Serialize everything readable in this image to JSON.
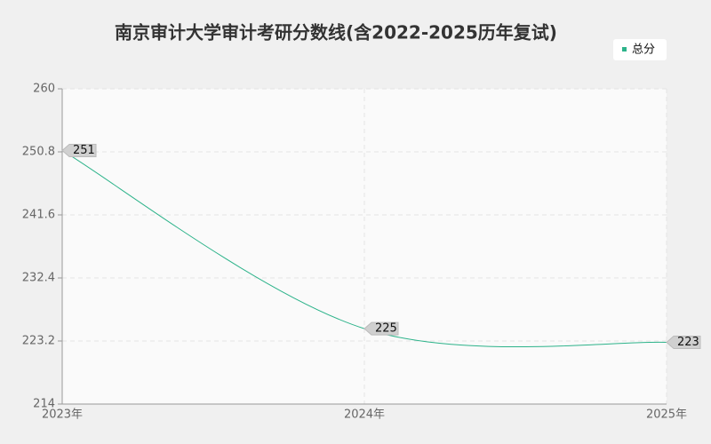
{
  "chart_data": {
    "type": "line",
    "title": "南京审计大学审计考研分数线(含2022-2025历年复试)",
    "categories": [
      "2023年",
      "2024年",
      "2025年"
    ],
    "series": [
      {
        "name": "总分",
        "color": "#2db38a",
        "values": [
          251,
          225,
          223
        ]
      }
    ],
    "ylim": [
      214,
      260
    ],
    "yticks": [
      214,
      223.2,
      232.4,
      241.6,
      250.8,
      260
    ],
    "grid": true,
    "legend": "top-right"
  }
}
